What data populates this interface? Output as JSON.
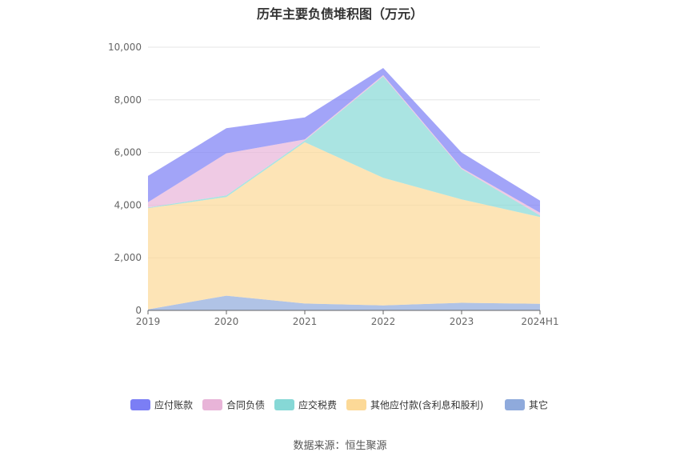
{
  "chart_data": {
    "type": "area",
    "title": "历年主要负债堆积图（万元）",
    "categories": [
      "2019",
      "2020",
      "2021",
      "2022",
      "2023",
      "2024H1"
    ],
    "ylim": [
      0,
      10000
    ],
    "yticks": [
      "0",
      "2,000",
      "4,000",
      "6,000",
      "8,000",
      "10,000"
    ],
    "stacked": true,
    "grid": true,
    "legend_position": "bottom",
    "series": [
      {
        "name": "其它",
        "color": "#8faadc",
        "values": [
          40,
          560,
          260,
          190,
          290,
          250
        ]
      },
      {
        "name": "其他应付款(含利息和股利)",
        "color": "#fcd997",
        "values": [
          3840,
          3750,
          6130,
          4850,
          3930,
          3300
        ]
      },
      {
        "name": "应交税费",
        "color": "#86d8d6",
        "values": [
          30,
          60,
          60,
          3850,
          1150,
          60
        ]
      },
      {
        "name": "合同负债",
        "color": "#e8b4d8",
        "values": [
          200,
          1600,
          50,
          50,
          50,
          100
        ]
      },
      {
        "name": "应付账款",
        "color": "#7b7ef5",
        "values": [
          1000,
          950,
          830,
          270,
          580,
          460
        ]
      }
    ],
    "legend_order": [
      "应付账款",
      "合同负债",
      "应交税费",
      "其他应付款(含利息和股利)",
      "其它"
    ]
  },
  "source": "数据来源：恒生聚源"
}
